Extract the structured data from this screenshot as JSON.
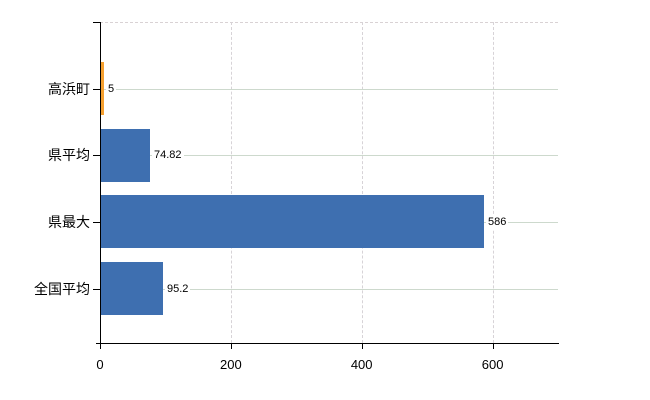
{
  "chart_data": {
    "type": "bar",
    "orientation": "horizontal",
    "title": "",
    "xlabel": "",
    "ylabel": "",
    "categories": [
      "高浜町",
      "県平均",
      "県最大",
      "全国平均"
    ],
    "values": [
      5,
      74.82,
      586,
      95.2
    ],
    "value_labels": [
      "5",
      "74.82",
      "586",
      "95.2"
    ],
    "bar_colors": [
      "#f5a030",
      "#3e6fb0",
      "#3e6fb0",
      "#3e6fb0"
    ],
    "xlim": [
      0,
      700
    ],
    "x_ticks": [
      0,
      200,
      400,
      600
    ],
    "grid": "horizontal solid per category, vertical dashed at x ticks, dashed top border",
    "legend": "none"
  },
  "colors": {
    "background": "#ffffff",
    "axis": "#000000",
    "text": "#000000",
    "grid_horizontal": "#cdd9cd",
    "grid_vertical": "#d7d3d7",
    "plot_top_border": "#d9d2d4",
    "bar_blue": "#3e6fb0",
    "bar_orange": "#f5a030"
  }
}
